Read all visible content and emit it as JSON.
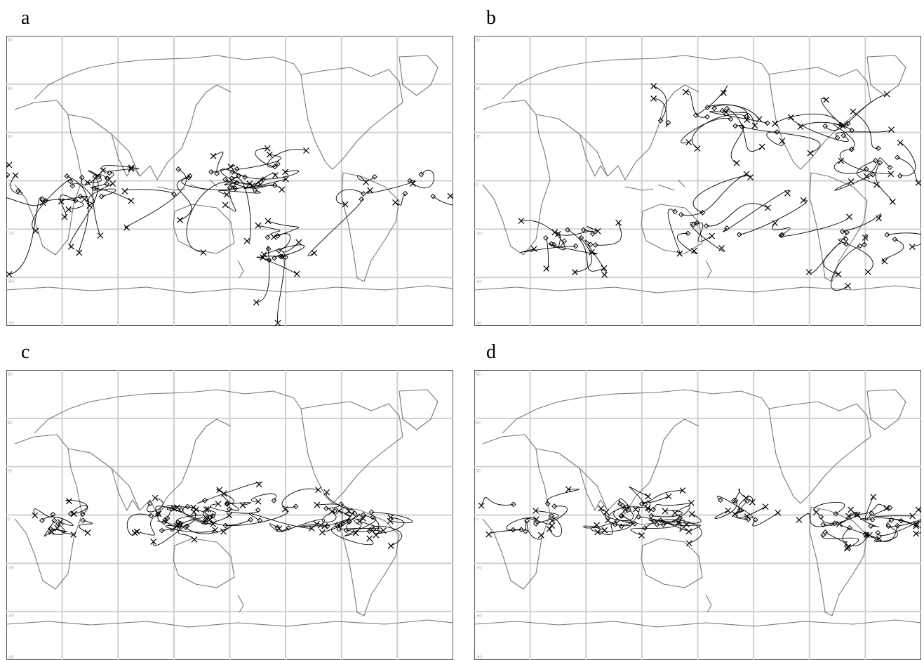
{
  "panels": [
    {
      "label": "a",
      "pattern": "a"
    },
    {
      "label": "b",
      "pattern": "b"
    },
    {
      "label": "c",
      "pattern": "c"
    },
    {
      "label": "d",
      "pattern": "d"
    }
  ],
  "axis_labels": [
    "90",
    "60",
    "30",
    "0",
    "-30",
    "-60",
    "-90"
  ],
  "colors": {
    "grid": "#d0d0d0",
    "coast": "#777777",
    "track": "#000000",
    "frame": "#555555"
  },
  "markers": {
    "start": "diamond-marker",
    "end": "x-marker"
  }
}
